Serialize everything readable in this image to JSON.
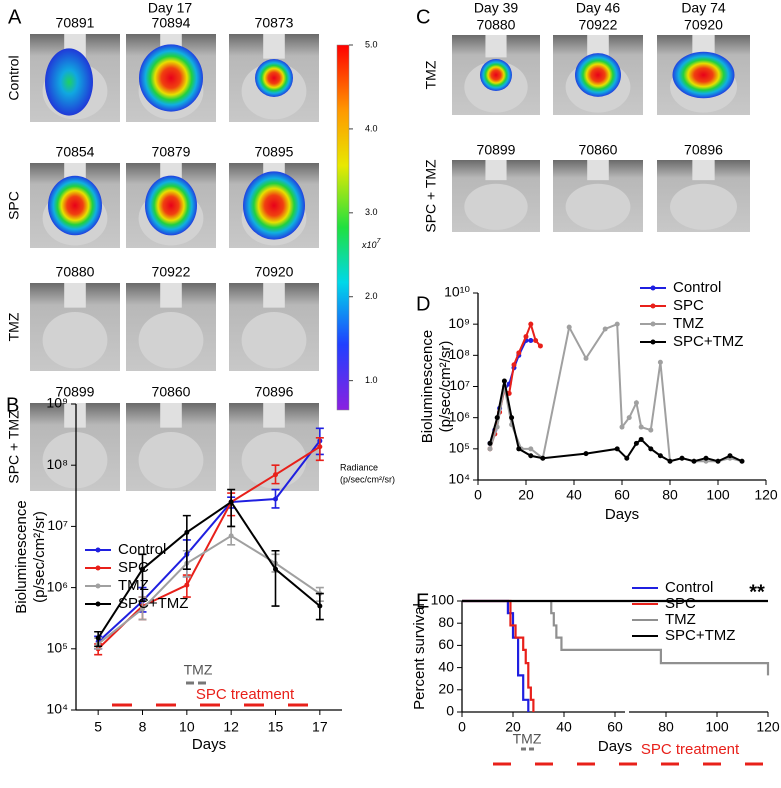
{
  "panel_a": {
    "letter": "A",
    "day": "Day 17",
    "rows": [
      {
        "label": "Control",
        "ids": [
          "70891",
          "70894",
          "70873"
        ]
      },
      {
        "label": "SPC",
        "ids": [
          "70854",
          "70879",
          "70895"
        ]
      },
      {
        "label": "TMZ",
        "ids": [
          "70880",
          "70922",
          "70920"
        ]
      },
      {
        "label": "SPC + TMZ",
        "ids": [
          "70899",
          "70860",
          "70896"
        ]
      }
    ]
  },
  "colorbar": {
    "ticks": [
      {
        "value": 5.0,
        "label": "5.0"
      },
      {
        "value": 4.0,
        "label": "4.0"
      },
      {
        "value": 3.0,
        "label": "3.0"
      },
      {
        "value": 2.0,
        "label": "2.0"
      },
      {
        "value": 1.0,
        "label": "1.0"
      }
    ],
    "lim": [
      0.65,
      5.0
    ],
    "multiplier": "x10",
    "exponent": "7",
    "title": [
      "Radiance",
      "(p/sec/cm²/sr)"
    ]
  },
  "panel_c": {
    "letter": "C",
    "days": [
      "Day 39",
      "Day 46",
      "Day 74"
    ],
    "rows": [
      {
        "label": "TMZ",
        "ids": [
          "70880",
          "70922",
          "70920"
        ]
      },
      {
        "label": "SPC + TMZ",
        "ids": [
          "70899",
          "70860",
          "70896"
        ]
      }
    ]
  },
  "chart_data": [
    {
      "type": "line",
      "panel": "B",
      "xlabel": "Days",
      "ylabel": [
        "Bioluminescence",
        "(p/sec/cm²/sr)"
      ],
      "categories": [
        "5",
        "8",
        "10",
        "12",
        "15",
        "17"
      ],
      "log_y": true,
      "markers": true,
      "ylim": [
        10000.0,
        1000000000.0
      ],
      "yticks": [
        {
          "value": 10000.0,
          "label": "10⁴"
        },
        {
          "value": 100000.0,
          "label": "10⁵"
        },
        {
          "value": 1000000.0,
          "label": "10⁶"
        },
        {
          "value": 10000000.0,
          "label": "10⁷"
        },
        {
          "value": 100000000.0,
          "label": "10⁸"
        },
        {
          "value": 1000000000.0,
          "label": "10⁹"
        }
      ],
      "series": [
        {
          "name": "Control",
          "color": "#1f1fe0",
          "values": [
            130000.0,
            600000.0,
            3500000.0,
            25000000.0,
            28000000.0,
            250000000.0
          ],
          "lows": [
            100000.0,
            400000.0,
            1500000.0,
            20000000.0,
            20000000.0,
            150000000.0
          ],
          "highs": [
            160000.0,
            1000000.0,
            6000000.0,
            30000000.0,
            40000000.0,
            400000000.0
          ]
        },
        {
          "name": "SPC",
          "color": "#e8201a",
          "values": [
            100000.0,
            500000.0,
            1100000.0,
            25000000.0,
            70000000.0,
            200000000.0
          ],
          "lows": [
            80000.0,
            300000.0,
            700000.0,
            15000000.0,
            50000000.0,
            120000000.0
          ],
          "highs": [
            120000.0,
            700000.0,
            1600000.0,
            35000000.0,
            100000000.0,
            280000000.0
          ]
        },
        {
          "name": "TMZ",
          "color": "#a0a0a0",
          "values": [
            120000.0,
            450000.0,
            2500000.0,
            7000000.0,
            2500000.0,
            800000.0
          ],
          "lows": [
            100000.0,
            300000.0,
            1500000.0,
            5000000.0,
            1800000.0,
            600000.0
          ],
          "highs": [
            150000.0,
            700000.0,
            4000000.0,
            10000000.0,
            3500000.0,
            1000000.0
          ]
        },
        {
          "name": "SPC+TMZ",
          "color": "#000000",
          "values": [
            150000.0,
            2000000.0,
            8000000.0,
            25000000.0,
            2000000.0,
            500000.0
          ],
          "lows": [
            110000.0,
            600000.0,
            2000000.0,
            10000000.0,
            500000.0,
            300000.0
          ],
          "highs": [
            190000.0,
            3500000.0,
            15000000.0,
            40000000.0,
            4000000.0,
            800000.0
          ]
        }
      ],
      "annotations": [
        "TMZ",
        "SPC treatment"
      ]
    },
    {
      "type": "line",
      "panel": "D",
      "xlabel": "Days",
      "ylabel": [
        "Bioluminescence",
        "(p/sec/cm²/sr)"
      ],
      "log_y": true,
      "markers": true,
      "xlim": [
        0,
        120
      ],
      "xticks": [
        0,
        20,
        40,
        60,
        80,
        100,
        120
      ],
      "ylim": [
        10000.0,
        10000000000.0
      ],
      "yticks": [
        {
          "value": 10000.0,
          "label": "10⁴"
        },
        {
          "value": 100000.0,
          "label": "10⁵"
        },
        {
          "value": 1000000.0,
          "label": "10⁶"
        },
        {
          "value": 10000000.0,
          "label": "10⁷"
        },
        {
          "value": 100000000.0,
          "label": "10⁸"
        },
        {
          "value": 1000000000.0,
          "label": "10⁹"
        },
        {
          "value": 10000000000.0,
          "label": "10¹⁰"
        }
      ],
      "series": [
        {
          "name": "Control",
          "color": "#1f1fe0",
          "x": [
            5,
            7,
            9,
            11,
            13,
            15,
            17,
            20,
            22
          ],
          "values": [
            150000.0,
            400000.0,
            2000000.0,
            8000000.0,
            12000000.0,
            40000000.0,
            100000000.0,
            300000000.0,
            300000000.0
          ]
        },
        {
          "name": "SPC",
          "color": "#e8201a",
          "x": [
            5,
            7,
            9,
            11,
            13,
            15,
            17,
            20,
            22,
            24,
            26
          ],
          "values": [
            100000.0,
            300000.0,
            1500000.0,
            8000000.0,
            6000000.0,
            50000000.0,
            120000000.0,
            400000000.0,
            1000000000.0,
            300000000.0,
            200000000.0
          ]
        },
        {
          "name": "TMZ",
          "color": "#a0a0a0",
          "x": [
            5,
            8,
            11,
            14,
            18,
            22,
            27,
            38,
            45,
            53,
            58,
            60,
            63,
            66,
            68,
            72,
            76,
            80,
            85,
            90,
            95,
            100,
            105,
            110
          ],
          "values": [
            100000.0,
            500000.0,
            10000000.0,
            600000.0,
            100000.0,
            100000.0,
            50000.0,
            800000000.0,
            80000000.0,
            700000000.0,
            1000000000.0,
            500000.0,
            1000000.0,
            3000000.0,
            500000.0,
            400000.0,
            60000000.0,
            40000.0,
            50000.0,
            40000.0,
            40000.0,
            40000.0,
            50000.0,
            40000.0
          ]
        },
        {
          "name": "SPC+TMZ",
          "color": "#000000",
          "x": [
            5,
            8,
            11,
            14,
            17,
            22,
            27,
            45,
            58,
            62,
            66,
            68,
            72,
            76,
            80,
            85,
            90,
            95,
            100,
            105,
            110
          ],
          "values": [
            150000.0,
            1000000.0,
            15000000.0,
            1000000.0,
            100000.0,
            60000.0,
            50000.0,
            70000.0,
            100000.0,
            50000.0,
            150000.0,
            200000.0,
            100000.0,
            60000.0,
            40000.0,
            50000.0,
            40000.0,
            50000.0,
            40000.0,
            60000.0,
            40000.0
          ]
        }
      ]
    },
    {
      "type": "line",
      "panel": "E",
      "xlabel": "Days",
      "ylabel": [
        "Percent survival"
      ],
      "markers": false,
      "xlim": [
        0,
        120
      ],
      "xticks": [
        0,
        20,
        40,
        60,
        80,
        100,
        120
      ],
      "ylim": [
        0,
        100
      ],
      "yticks": [
        0,
        20,
        40,
        60,
        80,
        100
      ],
      "series": [
        {
          "name": "Control",
          "color": "#1f1fe0",
          "x": [
            0,
            18,
            18,
            20,
            20,
            22,
            22,
            24,
            24,
            26,
            26
          ],
          "values": [
            100,
            100,
            89,
            89,
            67,
            67,
            33,
            33,
            11,
            11,
            0
          ]
        },
        {
          "name": "SPC",
          "color": "#e8201a",
          "x": [
            0,
            19,
            19,
            21,
            21,
            24,
            24,
            25,
            25,
            26,
            26,
            27,
            27,
            28,
            28
          ],
          "values": [
            100,
            100,
            78,
            78,
            67,
            67,
            56,
            56,
            44,
            44,
            22,
            22,
            11,
            11,
            0
          ]
        },
        {
          "name": "TMZ",
          "color": "#909090",
          "x": [
            35,
            35,
            36,
            36,
            37,
            37,
            39,
            39,
            78,
            78,
            120,
            120
          ],
          "values": [
            100,
            89,
            89,
            78,
            78,
            67,
            67,
            56,
            56,
            44,
            44,
            33
          ]
        },
        {
          "name": "SPC+TMZ",
          "color": "#000000",
          "x": [
            0,
            120
          ],
          "values": [
            100,
            100
          ]
        }
      ],
      "annotations": [
        "TMZ",
        "SPC treatment",
        "**"
      ]
    }
  ]
}
